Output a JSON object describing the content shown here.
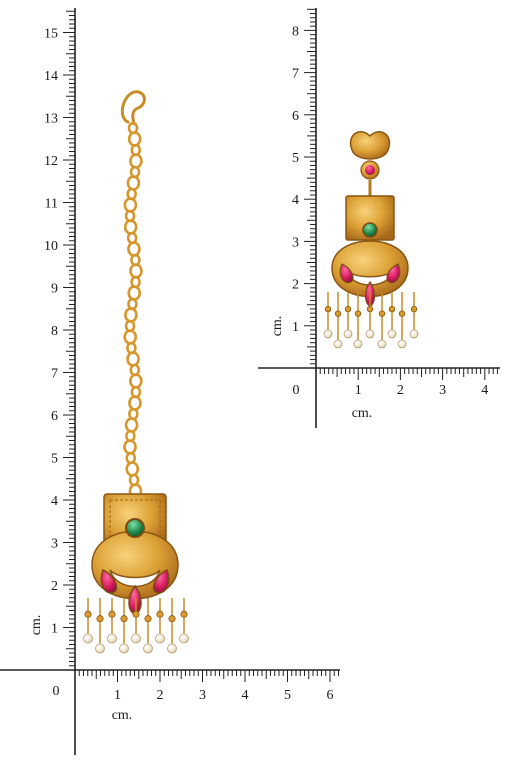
{
  "scale_left": {
    "unit": "cm.",
    "origin": "0",
    "vertical_labels": [
      "1",
      "2",
      "3",
      "4",
      "5",
      "6",
      "7",
      "8",
      "9",
      "10",
      "11",
      "12",
      "13",
      "14",
      "15"
    ],
    "horizontal_labels": [
      "1",
      "2",
      "3",
      "4",
      "5",
      "6"
    ]
  },
  "scale_right": {
    "unit": "cm.",
    "origin": "0",
    "vertical_labels": [
      "1",
      "2",
      "3",
      "4",
      "5",
      "6",
      "7",
      "8"
    ],
    "horizontal_labels": [
      "1",
      "2",
      "3",
      "4"
    ]
  },
  "colors": {
    "gold": "#d99a2b",
    "gold_dark": "#a8681a",
    "gold_light": "#f3c35a",
    "ruby": "#d81e63",
    "emerald": "#1e8a4c",
    "pearl": "#f4ead6",
    "ruler": "#222222"
  },
  "icons": {
    "maang_tikka": "maang-tikka-jewelry-icon",
    "earring": "chandbali-earring-icon"
  }
}
